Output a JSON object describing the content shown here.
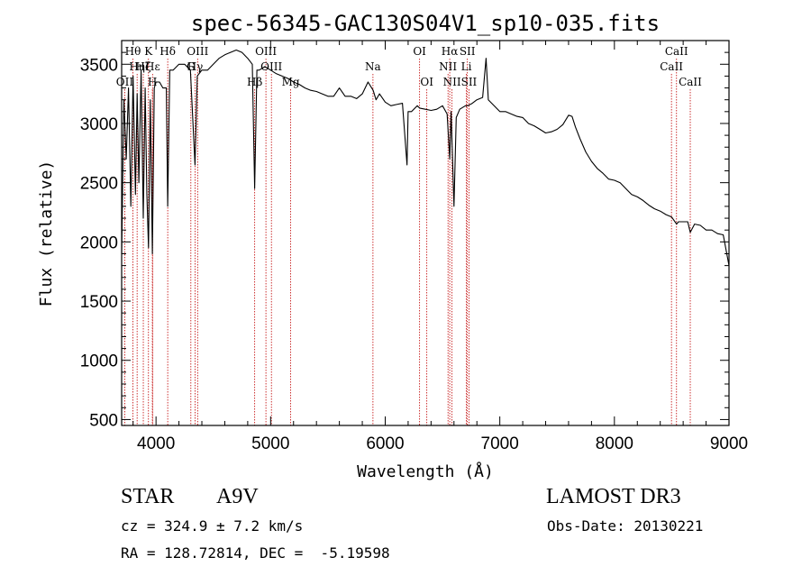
{
  "chart_data": {
    "type": "line",
    "title": "spec-56345-GAC130S04V1_sp10-035.fits",
    "xlabel": "Wavelength (Å)",
    "ylabel": "Flux (relative)",
    "xlim": [
      3700,
      9000
    ],
    "ylim": [
      450,
      3700
    ],
    "xticks": [
      4000,
      5000,
      6000,
      7000,
      8000,
      9000
    ],
    "yticks": [
      500,
      1000,
      1500,
      2000,
      2500,
      3000,
      3500
    ],
    "line_color": "#c00000",
    "spectrum": {
      "name": "flux",
      "x": [
        3700,
        3720,
        3740,
        3760,
        3780,
        3800,
        3820,
        3835,
        3850,
        3870,
        3889,
        3905,
        3920,
        3934,
        3950,
        3968,
        3985,
        4000,
        4030,
        4060,
        4090,
        4102,
        4120,
        4150,
        4200,
        4250,
        4300,
        4340,
        4360,
        4400,
        4450,
        4500,
        4550,
        4600,
        4650,
        4700,
        4750,
        4800,
        4840,
        4861,
        4880,
        4900,
        4950,
        5000,
        5050,
        5100,
        5150,
        5200,
        5250,
        5300,
        5350,
        5400,
        5450,
        5500,
        5550,
        5600,
        5650,
        5700,
        5750,
        5800,
        5850,
        5895,
        5920,
        5950,
        6000,
        6050,
        6100,
        6150,
        6190,
        6200,
        6230,
        6280,
        6300,
        6350,
        6400,
        6450,
        6500,
        6540,
        6563,
        6575,
        6600,
        6620,
        6650,
        6700,
        6720,
        6760,
        6800,
        6850,
        6880,
        6900,
        6950,
        7000,
        7050,
        7100,
        7150,
        7200,
        7250,
        7300,
        7350,
        7400,
        7450,
        7500,
        7550,
        7600,
        7630,
        7660,
        7700,
        7750,
        7800,
        7850,
        7900,
        7950,
        8000,
        8050,
        8100,
        8150,
        8200,
        8250,
        8300,
        8350,
        8400,
        8450,
        8500,
        8542,
        8560,
        8600,
        8640,
        8662,
        8700,
        8750,
        8800,
        8850,
        8900,
        8950,
        9000
      ],
      "y": [
        1900,
        3200,
        2700,
        3300,
        2300,
        3400,
        2400,
        3250,
        2500,
        3450,
        2200,
        3300,
        2400,
        1950,
        3200,
        1900,
        3300,
        3350,
        3350,
        3300,
        3300,
        2300,
        3450,
        3450,
        3500,
        3500,
        3450,
        2650,
        3400,
        3450,
        3450,
        3500,
        3550,
        3580,
        3600,
        3620,
        3600,
        3550,
        3500,
        2450,
        3450,
        3450,
        3480,
        3450,
        3420,
        3400,
        3380,
        3350,
        3330,
        3300,
        3280,
        3270,
        3250,
        3230,
        3230,
        3300,
        3230,
        3230,
        3210,
        3250,
        3350,
        3280,
        3200,
        3250,
        3180,
        3150,
        3160,
        3170,
        2650,
        3100,
        3100,
        3150,
        3130,
        3120,
        3110,
        3120,
        3150,
        3080,
        2700,
        3100,
        2300,
        3050,
        3120,
        3150,
        3150,
        3170,
        3200,
        3220,
        3550,
        3200,
        3150,
        3100,
        3100,
        3080,
        3060,
        3050,
        3000,
        2980,
        2950,
        2920,
        2930,
        2950,
        2990,
        3070,
        3060,
        2970,
        2870,
        2760,
        2680,
        2620,
        2580,
        2530,
        2520,
        2500,
        2450,
        2400,
        2380,
        2350,
        2310,
        2280,
        2260,
        2230,
        2210,
        2150,
        2170,
        2170,
        2170,
        2080,
        2150,
        2140,
        2100,
        2100,
        2070,
        2060,
        1800
      ]
    },
    "spectral_lines": [
      {
        "label": "Hθ",
        "x": 3798,
        "row": 0
      },
      {
        "label": "OII",
        "x": 3727,
        "row": 2
      },
      {
        "label": "Hη",
        "x": 3835,
        "row": 1
      },
      {
        "label": "Hζ",
        "x": 3889,
        "row": 1
      },
      {
        "label": "K",
        "x": 3934,
        "row": 0
      },
      {
        "label": "H",
        "x": 3968,
        "row": 2
      },
      {
        "label": "Hε",
        "x": 3970,
        "row": 1
      },
      {
        "label": "Hδ",
        "x": 4102,
        "row": 0
      },
      {
        "label": "G",
        "x": 4304,
        "row": 1
      },
      {
        "label": "OIII",
        "x": 4363,
        "row": 0
      },
      {
        "label": "Hγ",
        "x": 4341,
        "row": 1
      },
      {
        "label": "Hβ",
        "x": 4861,
        "row": 2
      },
      {
        "label": "OIII",
        "x": 4959,
        "row": 0
      },
      {
        "label": "OIII",
        "x": 5007,
        "row": 1
      },
      {
        "label": "Mg",
        "x": 5175,
        "row": 2
      },
      {
        "label": "Na",
        "x": 5893,
        "row": 1
      },
      {
        "label": "OI",
        "x": 6300,
        "row": 0
      },
      {
        "label": "OI",
        "x": 6363,
        "row": 2
      },
      {
        "label": "Hα",
        "x": 6563,
        "row": 0
      },
      {
        "label": "NII",
        "x": 6548,
        "row": 1
      },
      {
        "label": "NII",
        "x": 6583,
        "row": 2
      },
      {
        "label": "SII",
        "x": 6717,
        "row": 0
      },
      {
        "label": "Li",
        "x": 6708,
        "row": 1
      },
      {
        "label": "SII",
        "x": 6731,
        "row": 2
      },
      {
        "label": "CaII",
        "x": 8498,
        "row": 1
      },
      {
        "label": "CaII",
        "x": 8542,
        "row": 0
      },
      {
        "label": "CaII",
        "x": 8662,
        "row": 2
      }
    ]
  },
  "info": {
    "object_type": "STAR",
    "subclass": "A9V",
    "survey": "LAMOST DR3",
    "redshift_text": "cz = 324.9 ± 7.2 km/s",
    "obs_date": "Obs-Date: 20130221",
    "coords": "RA = 128.72814, DEC =  -5.19598"
  }
}
